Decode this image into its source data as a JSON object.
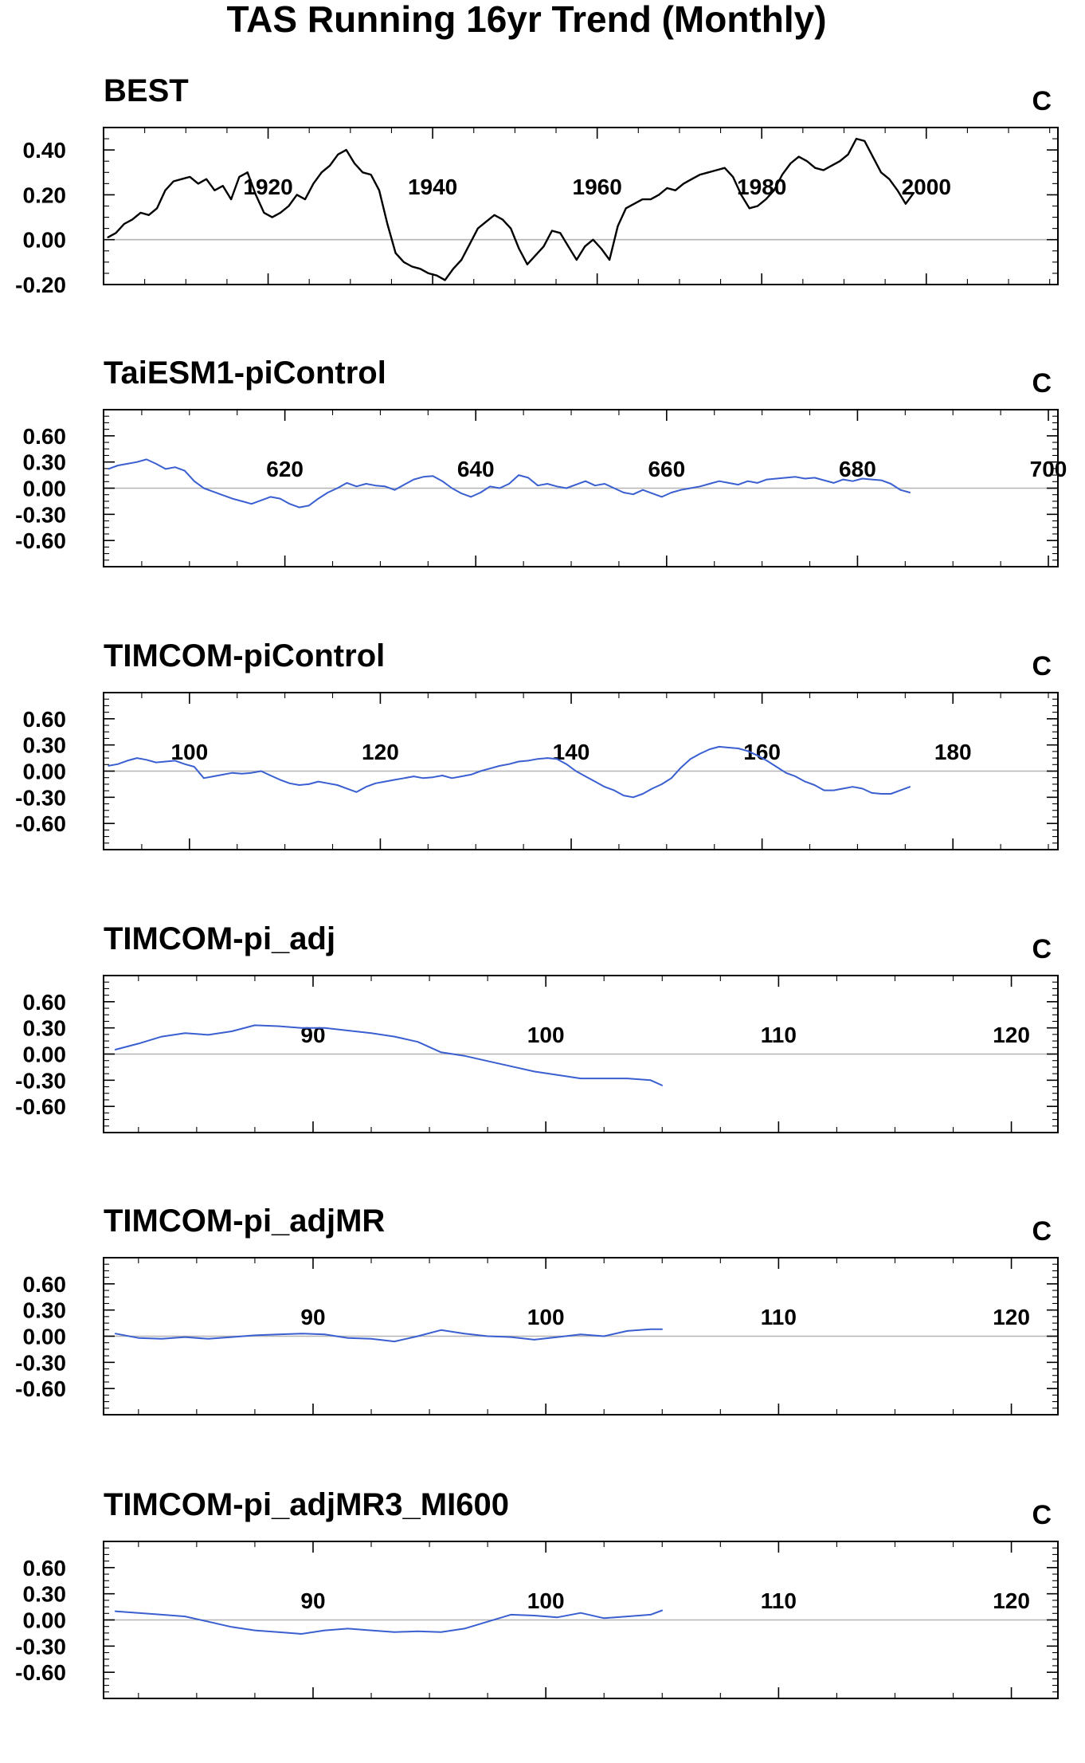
{
  "title": "TAS Running 16yr Trend (Monthly)",
  "chart_data": [
    {
      "type": "line",
      "title": "BEST",
      "unit": "C",
      "color": "#000000",
      "xlim": [
        1900,
        2016
      ],
      "ylim": [
        -0.2,
        0.5
      ],
      "x_ticks": [
        1920,
        1940,
        1960,
        1980,
        2000
      ],
      "x_tick_labels": [
        "1920",
        "1940",
        "1960",
        "1980",
        "2000"
      ],
      "y_ticks": [
        -0.2,
        0.0,
        0.2,
        0.4
      ],
      "y_tick_labels": [
        "-0.20",
        "0.00",
        "0.20",
        "0.40"
      ],
      "series": [
        {
          "x": [
            1900.5,
            1901.5,
            1902.5,
            1903.5,
            1904.5,
            1905.5,
            1906.5,
            1907.5,
            1908.5,
            1909.5,
            1910.5,
            1911.5,
            1912.5,
            1913.5,
            1914.5,
            1915.5,
            1916.5,
            1917.5,
            1918.5,
            1919.5,
            1920.5,
            1921.5,
            1922.5,
            1923.5,
            1924.5,
            1925.5,
            1926.5,
            1927.5,
            1928.5,
            1929.5,
            1930.5,
            1931.5,
            1932.5,
            1933.5,
            1934.5,
            1935.5,
            1936.5,
            1937.5,
            1938.5,
            1939.5,
            1940.5,
            1941.5,
            1942.5,
            1943.5,
            1944.5,
            1945.5,
            1946.5,
            1947.5,
            1948.5,
            1949.5,
            1950.5,
            1951.5,
            1952.5,
            1953.5,
            1954.5,
            1955.5,
            1956.5,
            1957.5,
            1958.5,
            1959.5,
            1960.5,
            1961.5,
            1962.5,
            1963.5,
            1964.5,
            1965.5,
            1966.5,
            1967.5,
            1968.5,
            1969.5,
            1970.5,
            1971.5,
            1972.5,
            1973.5,
            1974.5,
            1975.5,
            1976.5,
            1977.5,
            1978.5,
            1979.5,
            1980.5,
            1981.5,
            1982.5,
            1983.5,
            1984.5,
            1985.5,
            1986.5,
            1987.5,
            1988.5,
            1989.5,
            1990.5,
            1991.5,
            1992.5,
            1993.5,
            1994.5,
            1995.5,
            1996.5,
            1997.5,
            1998.5
          ],
          "values": [
            0.01,
            0.03,
            0.07,
            0.09,
            0.12,
            0.11,
            0.14,
            0.22,
            0.26,
            0.27,
            0.28,
            0.25,
            0.27,
            0.22,
            0.24,
            0.18,
            0.28,
            0.3,
            0.2,
            0.12,
            0.1,
            0.12,
            0.15,
            0.2,
            0.18,
            0.25,
            0.3,
            0.33,
            0.38,
            0.4,
            0.34,
            0.3,
            0.29,
            0.22,
            0.07,
            -0.06,
            -0.1,
            -0.12,
            -0.13,
            -0.15,
            -0.16,
            -0.18,
            -0.13,
            -0.09,
            -0.02,
            0.05,
            0.08,
            0.11,
            0.09,
            0.05,
            -0.04,
            -0.11,
            -0.07,
            -0.03,
            0.04,
            0.03,
            -0.03,
            -0.09,
            -0.03,
            0.0,
            -0.04,
            -0.09,
            0.06,
            0.14,
            0.16,
            0.18,
            0.18,
            0.2,
            0.23,
            0.22,
            0.25,
            0.27,
            0.29,
            0.3,
            0.31,
            0.32,
            0.28,
            0.2,
            0.14,
            0.15,
            0.18,
            0.22,
            0.29,
            0.34,
            0.37,
            0.35,
            0.32,
            0.31,
            0.33,
            0.35,
            0.38,
            0.45,
            0.44,
            0.37,
            0.3,
            0.27,
            0.22,
            0.16,
            0.21
          ]
        }
      ]
    },
    {
      "type": "line",
      "title": "TaiESM1-piControl",
      "unit": "C",
      "color": "#3a5fd0",
      "xlim": [
        601,
        701
      ],
      "ylim": [
        -0.9,
        0.9
      ],
      "x_ticks": [
        620,
        640,
        660,
        680,
        700
      ],
      "x_tick_labels": [
        "620",
        "640",
        "660",
        "680",
        "700"
      ],
      "y_ticks": [
        -0.6,
        -0.3,
        0.0,
        0.3,
        0.6
      ],
      "y_tick_labels": [
        "-0.60",
        "-0.30",
        "0.00",
        "0.30",
        "0.60"
      ],
      "series": [
        {
          "x": [
            601.5,
            602.5,
            603.5,
            604.5,
            605.5,
            606.5,
            607.5,
            608.5,
            609.5,
            610.5,
            611.5,
            612.5,
            613.5,
            614.5,
            615.5,
            616.5,
            617.5,
            618.5,
            619.5,
            620.5,
            621.5,
            622.5,
            623.5,
            624.5,
            625.5,
            626.5,
            627.5,
            628.5,
            629.5,
            630.5,
            631.5,
            632.5,
            633.5,
            634.5,
            635.5,
            636.5,
            637.5,
            638.5,
            639.5,
            640.5,
            641.5,
            642.5,
            643.5,
            644.5,
            645.5,
            646.5,
            647.5,
            648.5,
            649.5,
            650.5,
            651.5,
            652.5,
            653.5,
            654.5,
            655.5,
            656.5,
            657.5,
            658.5,
            659.5,
            660.5,
            661.5,
            662.5,
            663.5,
            664.5,
            665.5,
            666.5,
            667.5,
            668.5,
            669.5,
            670.5,
            671.5,
            672.5,
            673.5,
            674.5,
            675.5,
            676.5,
            677.5,
            678.5,
            679.5,
            680.5,
            681.5,
            682.5,
            683.5,
            684.5,
            685.5
          ],
          "values": [
            0.22,
            0.26,
            0.28,
            0.3,
            0.33,
            0.28,
            0.22,
            0.24,
            0.2,
            0.08,
            0.0,
            -0.04,
            -0.08,
            -0.12,
            -0.15,
            -0.18,
            -0.14,
            -0.1,
            -0.12,
            -0.18,
            -0.22,
            -0.2,
            -0.12,
            -0.05,
            0.0,
            0.06,
            0.02,
            0.05,
            0.03,
            0.02,
            -0.02,
            0.04,
            0.1,
            0.13,
            0.14,
            0.08,
            0.0,
            -0.06,
            -0.1,
            -0.05,
            0.02,
            0.0,
            0.05,
            0.15,
            0.12,
            0.03,
            0.05,
            0.02,
            0.0,
            0.04,
            0.08,
            0.03,
            0.05,
            0.0,
            -0.05,
            -0.07,
            -0.02,
            -0.06,
            -0.1,
            -0.05,
            -0.02,
            0.0,
            0.02,
            0.05,
            0.08,
            0.06,
            0.04,
            0.08,
            0.06,
            0.1,
            0.11,
            0.12,
            0.13,
            0.11,
            0.12,
            0.09,
            0.06,
            0.1,
            0.08,
            0.11,
            0.1,
            0.09,
            0.05,
            -0.02,
            -0.05
          ]
        }
      ]
    },
    {
      "type": "line",
      "title": "TIMCOM-piControl",
      "unit": "C",
      "color": "#3a5fd0",
      "xlim": [
        91,
        191
      ],
      "ylim": [
        -0.9,
        0.9
      ],
      "x_ticks": [
        100,
        120,
        140,
        160,
        180
      ],
      "x_tick_labels": [
        "100",
        "120",
        "140",
        "160",
        "180"
      ],
      "y_ticks": [
        -0.6,
        -0.3,
        0.0,
        0.3,
        0.6
      ],
      "y_tick_labels": [
        "-0.60",
        "-0.30",
        "0.00",
        "0.30",
        "0.60"
      ],
      "series": [
        {
          "x": [
            91.5,
            92.5,
            93.5,
            94.5,
            95.5,
            96.5,
            97.5,
            98.5,
            99.5,
            100.5,
            101.5,
            102.5,
            103.5,
            104.5,
            105.5,
            106.5,
            107.5,
            108.5,
            109.5,
            110.5,
            111.5,
            112.5,
            113.5,
            114.5,
            115.5,
            116.5,
            117.5,
            118.5,
            119.5,
            120.5,
            121.5,
            122.5,
            123.5,
            124.5,
            125.5,
            126.5,
            127.5,
            128.5,
            129.5,
            130.5,
            131.5,
            132.5,
            133.5,
            134.5,
            135.5,
            136.5,
            137.5,
            138.5,
            139.5,
            140.5,
            141.5,
            142.5,
            143.5,
            144.5,
            145.5,
            146.5,
            147.5,
            148.5,
            149.5,
            150.5,
            151.5,
            152.5,
            153.5,
            154.5,
            155.5,
            156.5,
            157.5,
            158.5,
            159.5,
            160.5,
            161.5,
            162.5,
            163.5,
            164.5,
            165.5,
            166.5,
            167.5,
            168.5,
            169.5,
            170.5,
            171.5,
            172.5,
            173.5,
            174.5,
            175.5
          ],
          "values": [
            0.06,
            0.08,
            0.12,
            0.15,
            0.13,
            0.1,
            0.11,
            0.12,
            0.08,
            0.05,
            -0.08,
            -0.06,
            -0.04,
            -0.02,
            -0.03,
            -0.02,
            0.0,
            -0.05,
            -0.1,
            -0.14,
            -0.16,
            -0.15,
            -0.12,
            -0.14,
            -0.16,
            -0.2,
            -0.24,
            -0.18,
            -0.14,
            -0.12,
            -0.1,
            -0.08,
            -0.06,
            -0.08,
            -0.07,
            -0.05,
            -0.08,
            -0.06,
            -0.04,
            0.0,
            0.03,
            0.06,
            0.08,
            0.11,
            0.12,
            0.14,
            0.15,
            0.14,
            0.08,
            0.0,
            -0.06,
            -0.12,
            -0.18,
            -0.22,
            -0.28,
            -0.3,
            -0.26,
            -0.2,
            -0.15,
            -0.08,
            0.04,
            0.14,
            0.2,
            0.25,
            0.28,
            0.27,
            0.26,
            0.23,
            0.18,
            0.12,
            0.05,
            -0.02,
            -0.06,
            -0.12,
            -0.16,
            -0.22,
            -0.22,
            -0.2,
            -0.18,
            -0.2,
            -0.25,
            -0.26,
            -0.26,
            -0.22,
            -0.18
          ]
        }
      ]
    },
    {
      "type": "line",
      "title": "TIMCOM-pi_adj",
      "unit": "C",
      "color": "#3a5fd0",
      "xlim": [
        81,
        122
      ],
      "ylim": [
        -0.9,
        0.9
      ],
      "x_ticks": [
        90,
        100,
        110,
        120
      ],
      "x_tick_labels": [
        "90",
        "100",
        "110",
        "120"
      ],
      "y_ticks": [
        -0.6,
        -0.3,
        0.0,
        0.3,
        0.6
      ],
      "y_tick_labels": [
        "-0.60",
        "-0.30",
        "0.00",
        "0.30",
        "0.60"
      ],
      "series": [
        {
          "x": [
            81.5,
            82.5,
            83.5,
            84.5,
            85.5,
            86.5,
            87.5,
            88.5,
            89.5,
            90.5,
            91.5,
            92.5,
            93.5,
            94.5,
            95.5,
            96.5,
            97.5,
            98.5,
            99.5,
            100.5,
            101.5,
            102.5,
            103.5,
            104.5,
            105.0
          ],
          "values": [
            0.05,
            0.12,
            0.2,
            0.24,
            0.22,
            0.26,
            0.33,
            0.32,
            0.3,
            0.3,
            0.27,
            0.24,
            0.2,
            0.14,
            0.02,
            -0.02,
            -0.08,
            -0.14,
            -0.2,
            -0.24,
            -0.28,
            -0.28,
            -0.28,
            -0.3,
            -0.36
          ]
        }
      ]
    },
    {
      "type": "line",
      "title": "TIMCOM-pi_adjMR",
      "unit": "C",
      "color": "#3a5fd0",
      "xlim": [
        81,
        122
      ],
      "ylim": [
        -0.9,
        0.9
      ],
      "x_ticks": [
        90,
        100,
        110,
        120
      ],
      "x_tick_labels": [
        "90",
        "100",
        "110",
        "120"
      ],
      "y_ticks": [
        -0.6,
        -0.3,
        0.0,
        0.3,
        0.6
      ],
      "y_tick_labels": [
        "-0.60",
        "-0.30",
        "0.00",
        "0.30",
        "0.60"
      ],
      "series": [
        {
          "x": [
            81.5,
            82.5,
            83.5,
            84.5,
            85.5,
            86.5,
            87.5,
            88.5,
            89.5,
            90.5,
            91.5,
            92.5,
            93.5,
            94.5,
            95.5,
            96.5,
            97.5,
            98.5,
            99.5,
            100.5,
            101.5,
            102.5,
            103.5,
            104.5,
            105.0
          ],
          "values": [
            0.03,
            -0.02,
            -0.03,
            -0.01,
            -0.03,
            -0.01,
            0.01,
            0.02,
            0.03,
            0.02,
            -0.02,
            -0.03,
            -0.06,
            0.0,
            0.07,
            0.03,
            0.0,
            -0.01,
            -0.04,
            -0.01,
            0.02,
            0.0,
            0.06,
            0.08,
            0.08
          ]
        }
      ]
    },
    {
      "type": "line",
      "title": "TIMCOM-pi_adjMR3_MI600",
      "unit": "C",
      "color": "#3a5fd0",
      "xlim": [
        81,
        122
      ],
      "ylim": [
        -0.9,
        0.9
      ],
      "x_ticks": [
        90,
        100,
        110,
        120
      ],
      "x_tick_labels": [
        "90",
        "100",
        "110",
        "120"
      ],
      "y_ticks": [
        -0.6,
        -0.3,
        0.0,
        0.3,
        0.6
      ],
      "y_tick_labels": [
        "-0.60",
        "-0.30",
        "0.00",
        "0.30",
        "0.60"
      ],
      "series": [
        {
          "x": [
            81.5,
            82.5,
            83.5,
            84.5,
            85.5,
            86.5,
            87.5,
            88.5,
            89.5,
            90.5,
            91.5,
            92.5,
            93.5,
            94.5,
            95.5,
            96.5,
            97.5,
            98.5,
            99.5,
            100.5,
            101.5,
            102.5,
            103.5,
            104.5,
            105.0
          ],
          "values": [
            0.1,
            0.08,
            0.06,
            0.04,
            -0.02,
            -0.08,
            -0.12,
            -0.14,
            -0.16,
            -0.12,
            -0.1,
            -0.12,
            -0.14,
            -0.13,
            -0.14,
            -0.1,
            -0.02,
            0.06,
            0.05,
            0.03,
            0.08,
            0.02,
            0.04,
            0.06,
            0.11
          ]
        }
      ]
    }
  ]
}
